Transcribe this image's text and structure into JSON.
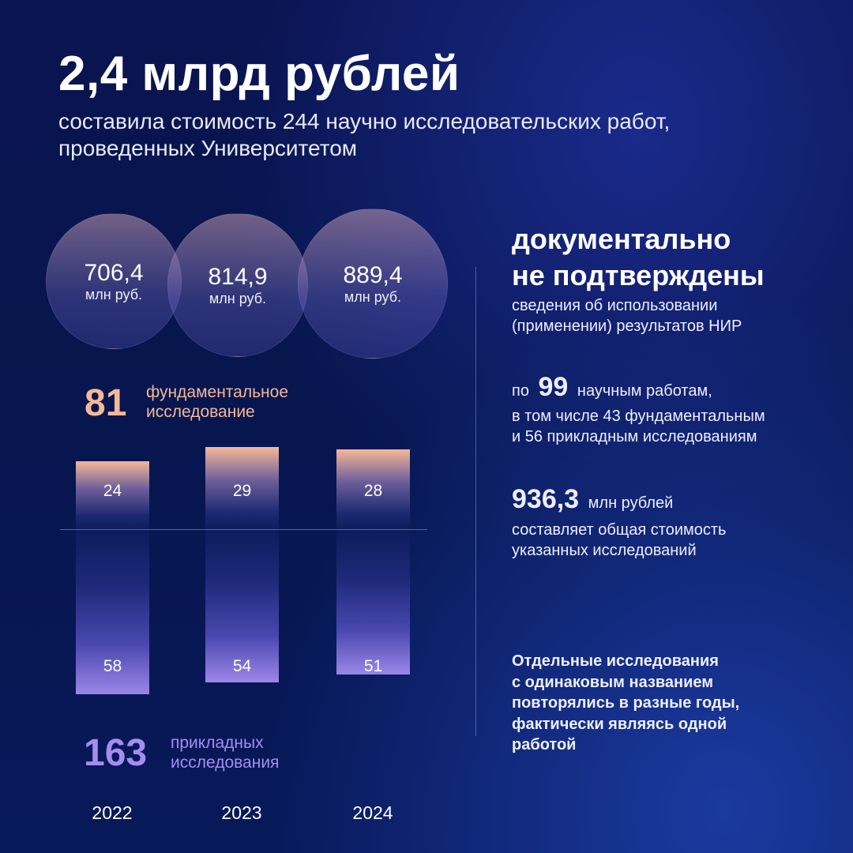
{
  "header": {
    "title": "2,4 млрд рублей",
    "subtitle_line1": "составила стоимость 244 научно исследовательских работ,",
    "subtitle_line2": "проведенных Университетом"
  },
  "circles": [
    {
      "value": "706,4",
      "unit": "млн руб."
    },
    {
      "value": "814,9",
      "unit": "млн руб."
    },
    {
      "value": "889,4",
      "unit": "млн руб."
    }
  ],
  "fundamental": {
    "total": "81",
    "label_line1": "фундаментальное",
    "label_line2": "исследование",
    "color": "#f4b898"
  },
  "applied": {
    "total": "163",
    "label_line1": "прикладных",
    "label_line2": "исследования",
    "color": "#a68cf0"
  },
  "chart_data": {
    "type": "bar",
    "categories": [
      "2022",
      "2023",
      "2024"
    ],
    "series": [
      {
        "name": "фундаментальное исследование",
        "values": [
          24,
          29,
          28
        ],
        "direction": "up"
      },
      {
        "name": "прикладных исследования",
        "values": [
          58,
          54,
          51
        ],
        "direction": "down"
      }
    ]
  },
  "right": {
    "headline1": "документально",
    "headline2": "не подтверждены",
    "desc1": "сведения об использовании",
    "desc2": "(применении) результатов НИР",
    "po": "по",
    "count": "99",
    "count_suffix": "научным работам,",
    "line2": "в том числе 43 фундаментальным",
    "line3": "и 56 прикладным исследованиям",
    "cost": "936,3",
    "cost_unit": "млн рублей",
    "cost_desc1": "составляет общая стоимость",
    "cost_desc2": "указанных исследований",
    "note": [
      "Отдельные исследования",
      "с одинаковым названием",
      "повторялись в разные годы,",
      "фактически являясь одной",
      "работой"
    ]
  }
}
